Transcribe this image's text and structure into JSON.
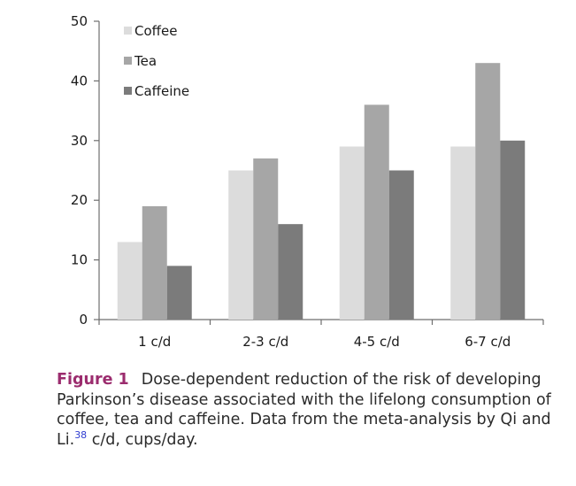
{
  "chart_data": {
    "type": "bar",
    "categories": [
      "1 c/d",
      "2-3 c/d",
      "4-5 c/d",
      "6-7 c/d"
    ],
    "series": [
      {
        "name": "Coffee",
        "color": "#dcdcdc",
        "values": [
          13,
          25,
          29,
          29
        ]
      },
      {
        "name": "Tea",
        "color": "#a6a6a6",
        "values": [
          19,
          27,
          36,
          43
        ]
      },
      {
        "name": "Caffeine",
        "color": "#7b7b7b",
        "values": [
          9,
          16,
          25,
          30
        ]
      }
    ],
    "ylim": [
      0,
      50
    ],
    "yticks": [
      "0",
      "10",
      "20",
      "30",
      "40",
      "50"
    ],
    "title": "",
    "xlabel": "",
    "ylabel": "",
    "legend_position": "top-left"
  },
  "caption": {
    "label": "Figure 1",
    "label_color": "#9b2c6e",
    "text": "Dose-dependent reduction of the risk of developing Parkinson’s disease associated with the lifelong consumption of coffee, tea and caffeine. Data from the meta-analysis by Qi and Li.",
    "ref": "38",
    "ref_color": "#2e3bd1",
    "tail": " c/d, cups/day."
  }
}
